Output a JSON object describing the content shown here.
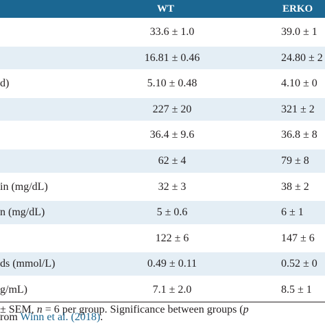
{
  "header": {
    "col_wt": "WT",
    "col_erko": "ERKO"
  },
  "rows": [
    {
      "label": "",
      "wt": "33.6 ± 1.0",
      "erko": "39.0 ± 1"
    },
    {
      "label": "",
      "wt": "16.81 ± 0.46",
      "erko": "24.80 ± 2"
    },
    {
      "label": "d)",
      "wt": "5.10 ± 0.48",
      "erko": "4.10 ± 0"
    },
    {
      "label": "",
      "wt": "227 ± 20",
      "erko": "321 ± 2"
    },
    {
      "label": "",
      "wt": "36.4 ± 9.6",
      "erko": "36.8 ± 8"
    },
    {
      "label": "",
      "wt": "62 ± 4",
      "erko": "79 ± 8"
    },
    {
      "label": "in (mg/dL)",
      "wt": "32 ± 3",
      "erko": "38 ± 2"
    },
    {
      "label": "n (mg/dL)",
      "wt": "5 ± 0.6",
      "erko": "6 ± 1"
    },
    {
      "label": "",
      "wt": "122 ± 6",
      "erko": "147 ± 6"
    },
    {
      "label": "ds (mmol/L)",
      "wt": "0.49 ± 0.11",
      "erko": "0.52 ± 0"
    },
    {
      "label": "g/mL)",
      "wt": "7.1 ± 2.0",
      "erko": "8.5 ± 1"
    }
  ],
  "footnote": {
    "line1_a": "± SEM, ",
    "line1_n": "n",
    "line1_b": " = 6 per group. Significance between groups (",
    "line1_p": "p",
    "line2_a": "rom ",
    "line2_ref": "Winn et al. (2018)",
    "line2_b": "."
  },
  "colors": {
    "header_bg": "#1b6792",
    "row_shade": "#e4eef5",
    "link": "#1b6792"
  }
}
